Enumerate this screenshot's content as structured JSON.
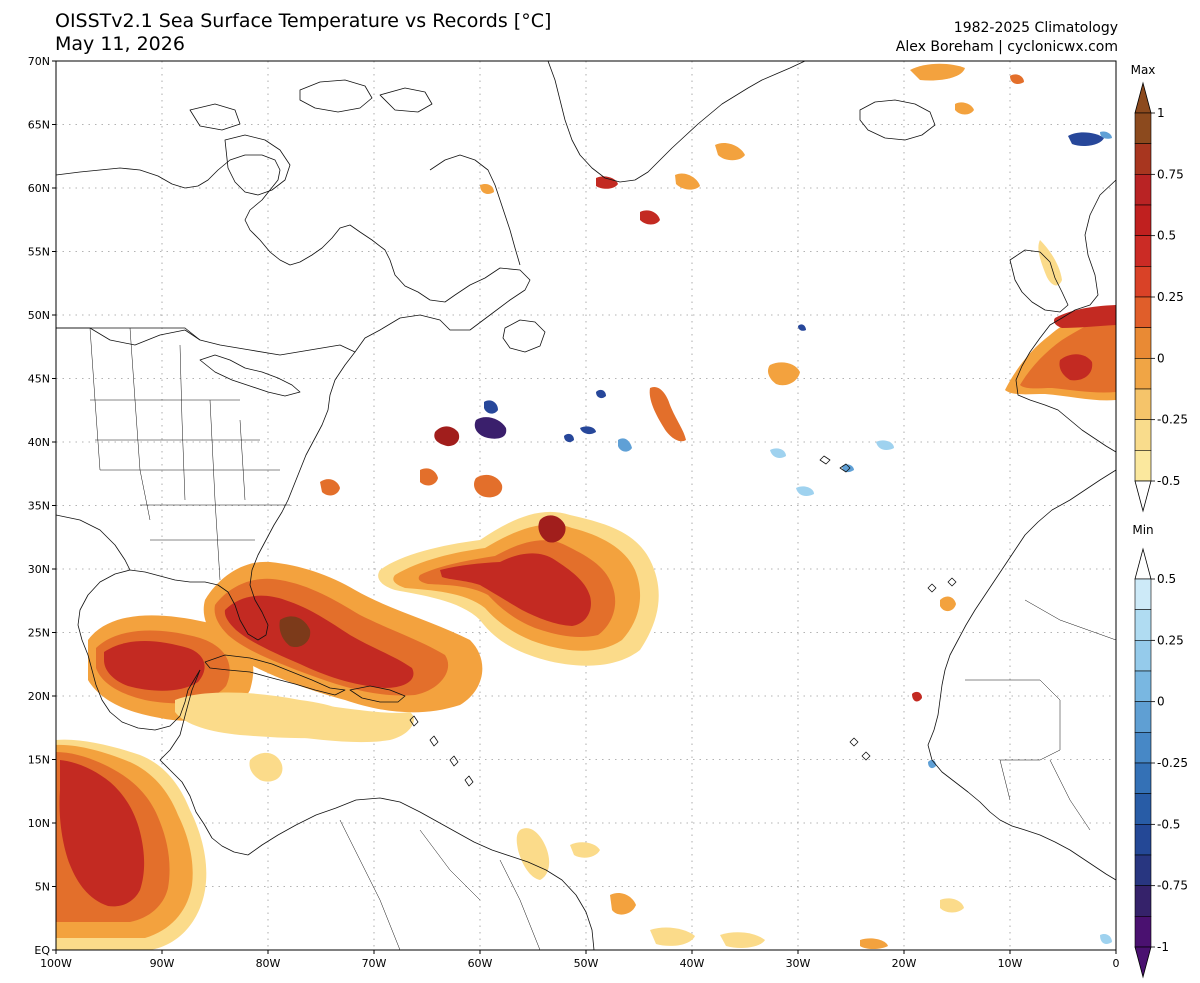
{
  "title": {
    "line1": "OISSTv2.1 Sea Surface Temperature vs Records [°C]",
    "line2": "May 11, 2026"
  },
  "credit": {
    "line1": "1982-2025 Climatology",
    "line2": "Alex Boreham | cyclonicwx.com"
  },
  "map": {
    "lon_range": [
      -100,
      0
    ],
    "lat_range": [
      0,
      70
    ],
    "lon_ticks": [
      {
        "value": -100,
        "label": "100W"
      },
      {
        "value": -90,
        "label": "90W"
      },
      {
        "value": -80,
        "label": "80W"
      },
      {
        "value": -70,
        "label": "70W"
      },
      {
        "value": -60,
        "label": "60W"
      },
      {
        "value": -50,
        "label": "50W"
      },
      {
        "value": -40,
        "label": "40W"
      },
      {
        "value": -30,
        "label": "30W"
      },
      {
        "value": -20,
        "label": "20W"
      },
      {
        "value": -10,
        "label": "10W"
      },
      {
        "value": 0,
        "label": "0"
      }
    ],
    "lat_ticks": [
      {
        "value": 0,
        "label": "EQ"
      },
      {
        "value": 5,
        "label": "5N"
      },
      {
        "value": 10,
        "label": "10N"
      },
      {
        "value": 15,
        "label": "15N"
      },
      {
        "value": 20,
        "label": "20N"
      },
      {
        "value": 25,
        "label": "25N"
      },
      {
        "value": 30,
        "label": "30N"
      },
      {
        "value": 35,
        "label": "35N"
      },
      {
        "value": 40,
        "label": "40N"
      },
      {
        "value": 45,
        "label": "45N"
      },
      {
        "value": 50,
        "label": "50N"
      },
      {
        "value": 55,
        "label": "55N"
      },
      {
        "value": 60,
        "label": "60N"
      },
      {
        "value": 65,
        "label": "65N"
      },
      {
        "value": 70,
        "label": "70N"
      }
    ],
    "gridlines": "dotted"
  },
  "colorbars": {
    "max": {
      "title": "Max",
      "labels": [
        "1",
        "0.75",
        "0.5",
        "0.25",
        "0",
        "-0.25",
        "-0.5"
      ],
      "colors": [
        "#8c4a1e",
        "#a8361f",
        "#b92324",
        "#c0201f",
        "#cb2b25",
        "#d94227",
        "#e05e2a",
        "#e98a34",
        "#f0a545",
        "#f5c46a",
        "#f9dc8c",
        "#fbe89e"
      ]
    },
    "min": {
      "title": "Min",
      "labels": [
        "0.5",
        "0.25",
        "0",
        "-0.25",
        "-0.5",
        "-0.75",
        "-1"
      ],
      "colors": [
        "#cdeaf8",
        "#b0dcf2",
        "#95cbeb",
        "#79b7e1",
        "#5f9fd3",
        "#4788c6",
        "#3471b6",
        "#285ca6",
        "#244896",
        "#283680",
        "#35226a",
        "#4a1170"
      ]
    }
  },
  "shading": {
    "warm_colors": {
      "light": "#fbdb8a",
      "mid": "#f3a23e",
      "orange": "#e36f2b",
      "red": "#c32a22",
      "dark": "#a11e1c",
      "brown": "#7c3a1a"
    },
    "cold_colors": {
      "light": "#9fd2ef",
      "mid": "#5fa0d6",
      "dark": "#27479a",
      "purple": "#3a1f6c"
    }
  }
}
